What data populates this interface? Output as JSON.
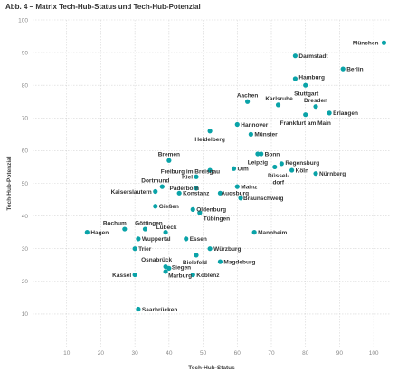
{
  "chart_data": {
    "type": "scatter",
    "title": "Abb. 4 – Matrix Tech-Hub-Status und Tech-Hub-Potenzial",
    "xlabel": "Tech-Hub-Status",
    "ylabel": "Tech-Hub-Potenzial",
    "xlim": [
      0,
      105
    ],
    "ylim": [
      0,
      100
    ],
    "xticks": [
      10,
      20,
      30,
      40,
      50,
      60,
      70,
      80,
      90,
      100
    ],
    "yticks": [
      10,
      20,
      30,
      40,
      50,
      60,
      70,
      80,
      90,
      100
    ],
    "grid": true,
    "point_color": "#0aa3a8",
    "points": [
      {
        "label": "München",
        "x": 103,
        "y": 93
      },
      {
        "label": "Darmstadt",
        "x": 77,
        "y": 89
      },
      {
        "label": "Berlin",
        "x": 91,
        "y": 85
      },
      {
        "label": "Hamburg",
        "x": 77,
        "y": 82
      },
      {
        "label": "Stuttgart",
        "x": 80,
        "y": 80
      },
      {
        "label": "Aachen",
        "x": 63,
        "y": 75
      },
      {
        "label": "Karlsruhe",
        "x": 72,
        "y": 74
      },
      {
        "label": "Dresden",
        "x": 83,
        "y": 73.5
      },
      {
        "label": "Erlangen",
        "x": 87,
        "y": 71.5
      },
      {
        "label": "Frankfurt am Main",
        "x": 80,
        "y": 71
      },
      {
        "label": "Hannover",
        "x": 60,
        "y": 68
      },
      {
        "label": "Heidelberg",
        "x": 52,
        "y": 66
      },
      {
        "label": "Münster",
        "x": 64,
        "y": 65
      },
      {
        "label": "Bonn",
        "x": 67,
        "y": 59
      },
      {
        "label": "Bremen",
        "x": 40,
        "y": 57
      },
      {
        "label": "Leipzig",
        "x": 66,
        "y": 59
      },
      {
        "label": "Regensburg",
        "x": 73,
        "y": 56
      },
      {
        "label": "Freiburg im Breisgau",
        "x": 52,
        "y": 54
      },
      {
        "label": "Ulm",
        "x": 59,
        "y": 54.5
      },
      {
        "label": "Düssel-dorf",
        "x": 71,
        "y": 55
      },
      {
        "label": "Köln",
        "x": 76,
        "y": 54
      },
      {
        "label": "Nürnberg",
        "x": 83,
        "y": 53
      },
      {
        "label": "Kiel",
        "x": 48,
        "y": 52
      },
      {
        "label": "Dortmund",
        "x": 38,
        "y": 49
      },
      {
        "label": "Paderborn",
        "x": 48,
        "y": 48.5
      },
      {
        "label": "Mainz",
        "x": 60,
        "y": 49
      },
      {
        "label": "Kaiserslautern",
        "x": 36,
        "y": 47.5
      },
      {
        "label": "Konstanz",
        "x": 43,
        "y": 47
      },
      {
        "label": "Augsburg",
        "x": 55,
        "y": 47
      },
      {
        "label": "Braunschweig",
        "x": 61,
        "y": 45.5
      },
      {
        "label": "Gießen",
        "x": 36,
        "y": 43
      },
      {
        "label": "Oldenburg",
        "x": 47,
        "y": 42
      },
      {
        "label": "Tübingen",
        "x": 49,
        "y": 41
      },
      {
        "label": "Bochum",
        "x": 27,
        "y": 36
      },
      {
        "label": "Göttingen",
        "x": 33,
        "y": 36
      },
      {
        "label": "Hagen",
        "x": 16,
        "y": 35
      },
      {
        "label": "Lübeck",
        "x": 39,
        "y": 35
      },
      {
        "label": "Mannheim",
        "x": 65,
        "y": 35
      },
      {
        "label": "Wuppertal",
        "x": 31,
        "y": 33
      },
      {
        "label": "Essen",
        "x": 45,
        "y": 33
      },
      {
        "label": "Trier",
        "x": 30,
        "y": 30
      },
      {
        "label": "Würzburg",
        "x": 52,
        "y": 30
      },
      {
        "label": "Bielefeld",
        "x": 48,
        "y": 28
      },
      {
        "label": "Osnabrück",
        "x": 39,
        "y": 24.5
      },
      {
        "label": "Siegen",
        "x": 40,
        "y": 24
      },
      {
        "label": "Magdeburg",
        "x": 55,
        "y": 26
      },
      {
        "label": "Kassel",
        "x": 30,
        "y": 22
      },
      {
        "label": "Marburg",
        "x": 39,
        "y": 23
      },
      {
        "label": "Koblenz",
        "x": 47,
        "y": 22
      },
      {
        "label": "Saarbrücken",
        "x": 31,
        "y": 11.5
      }
    ]
  }
}
